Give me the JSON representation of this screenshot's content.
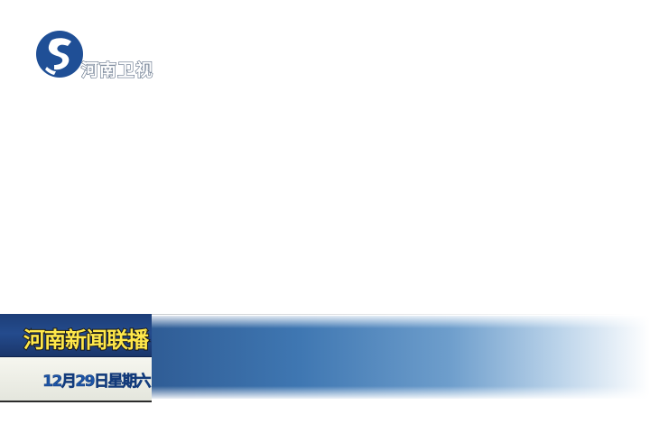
{
  "channel": {
    "name": "河南卫视",
    "logo_color": "#1f4f96"
  },
  "lower_third": {
    "program_title": "河南新闻联播",
    "date": "12月29日星期六",
    "title_color": "#ffe84a",
    "title_bg_color": "#1d3e78",
    "date_color": "#1d56a8",
    "bar_color": "#3f77b2"
  }
}
